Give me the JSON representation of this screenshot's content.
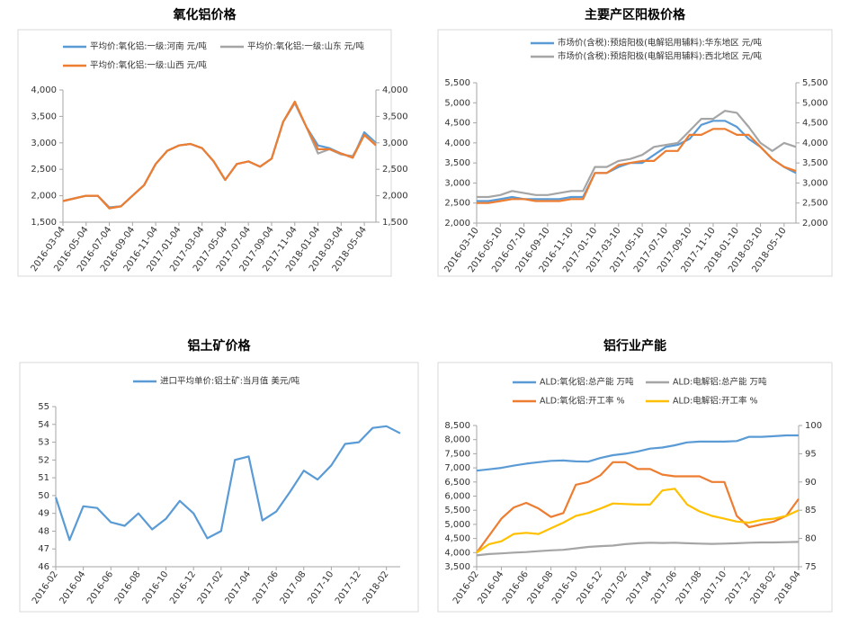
{
  "chart_data": [
    {
      "type": "line",
      "title": "氧化铝价格",
      "categories": [
        "2016-03-04",
        null,
        "2016-05-04",
        null,
        "2016-07-04",
        null,
        "2016-09-04",
        null,
        "2016-11-04",
        null,
        "2017-01-04",
        null,
        "2017-03-04",
        null,
        "2017-05-04",
        null,
        "2017-07-04",
        null,
        "2017-09-04",
        null,
        "2017-11-04",
        null,
        "2018-01-04",
        null,
        "2018-03-04",
        null,
        "2018-05-04",
        null
      ],
      "series": [
        {
          "name": "平均价:氧化铝:一级:河南 元/吨",
          "color": "#5b9bd5",
          "values": [
            1900,
            1950,
            2000,
            2000,
            1780,
            1800,
            2000,
            2200,
            2600,
            2850,
            2950,
            2980,
            2900,
            2650,
            2300,
            2600,
            2650,
            2550,
            2700,
            3400,
            3750,
            3300,
            2950,
            2900,
            2800,
            2720,
            3200,
            3000
          ]
        },
        {
          "name": "平均价:氧化铝:一级:山东 元/吨",
          "color": "#a5a5a5",
          "values": [
            1900,
            1950,
            2000,
            2000,
            1780,
            1800,
            2000,
            2200,
            2600,
            2850,
            2950,
            2980,
            2900,
            2650,
            2300,
            2600,
            2650,
            2550,
            2700,
            3400,
            3750,
            3300,
            2800,
            2880,
            2780,
            2750,
            3150,
            2980
          ]
        },
        {
          "name": "平均价:氧化铝:一级:山西 元/吨",
          "color": "#ed7d31",
          "values": [
            1900,
            1950,
            2000,
            2000,
            1760,
            1800,
            2000,
            2200,
            2600,
            2850,
            2950,
            2980,
            2900,
            2650,
            2300,
            2600,
            2650,
            2550,
            2700,
            3400,
            3780,
            3300,
            2880,
            2880,
            2800,
            2720,
            3150,
            2950
          ]
        }
      ],
      "ylim": [
        1500,
        4000
      ],
      "yticks": [
        {
          "value": 1500,
          "label": "1,500"
        },
        {
          "value": 2000,
          "label": "2,000"
        },
        {
          "value": 2500,
          "label": "2,500"
        },
        {
          "value": 3000,
          "label": "3,000"
        },
        {
          "value": 3500,
          "label": "3,500"
        },
        {
          "value": 4000,
          "label": "4,000"
        }
      ],
      "y2lim": [
        1500,
        4000
      ],
      "y2ticks": [
        {
          "value": 1500,
          "label": "1,500"
        },
        {
          "value": 2000,
          "label": "2,000"
        },
        {
          "value": 2500,
          "label": "2,500"
        },
        {
          "value": 3000,
          "label": "3,000"
        },
        {
          "value": 3500,
          "label": "3,500"
        },
        {
          "value": 4000,
          "label": "4,000"
        }
      ]
    },
    {
      "type": "line",
      "title": "主要产区阳极价格",
      "categories": [
        "2016-03-10",
        null,
        "2016-05-10",
        null,
        "2016-07-10",
        null,
        "2016-09-10",
        null,
        "2016-11-10",
        null,
        "2017-01-10",
        null,
        "2017-03-10",
        null,
        "2017-05-10",
        null,
        "2017-07-10",
        null,
        "2017-09-10",
        null,
        "2017-11-10",
        null,
        "2018-01-10",
        null,
        "2018-03-10",
        null,
        "2018-05-10",
        null
      ],
      "series": [
        {
          "name": "市场价(含税):预焙阳极(电解铝用辅料):华东地区 元/吨",
          "color": "#5b9bd5",
          "values": [
            2550,
            2550,
            2600,
            2650,
            2600,
            2600,
            2600,
            2600,
            2650,
            2650,
            3250,
            3250,
            3400,
            3500,
            3500,
            3700,
            3900,
            3950,
            4100,
            4450,
            4550,
            4550,
            4400,
            4100,
            3900,
            3600,
            3400,
            3250
          ]
        },
        {
          "name": "市场价(含税):预焙阳极(电解铝用辅料):西北地区 元/吨",
          "color": "#a5a5a5",
          "values": [
            2650,
            2650,
            2700,
            2800,
            2750,
            2700,
            2700,
            2750,
            2800,
            2800,
            3400,
            3400,
            3550,
            3600,
            3700,
            3900,
            3950,
            4000,
            4300,
            4600,
            4600,
            4800,
            4750,
            4400,
            4000,
            3800,
            4000,
            3900
          ]
        },
        {
          "color": "#ed7d31",
          "values": [
            2500,
            2500,
            2550,
            2600,
            2600,
            2550,
            2550,
            2550,
            2600,
            2600,
            3250,
            3250,
            3450,
            3500,
            3550,
            3550,
            3800,
            3800,
            4200,
            4200,
            4350,
            4350,
            4200,
            4200,
            3900,
            3600,
            3400,
            3300
          ]
        }
      ],
      "ylim": [
        2000,
        5500
      ],
      "yticks": [
        {
          "value": 2000,
          "label": "2,000"
        },
        {
          "value": 2500,
          "label": "2,500"
        },
        {
          "value": 3000,
          "label": "3,000"
        },
        {
          "value": 3500,
          "label": "3,500"
        },
        {
          "value": 4000,
          "label": "4,000"
        },
        {
          "value": 4500,
          "label": "4,500"
        },
        {
          "value": 5000,
          "label": "5,000"
        },
        {
          "value": 5500,
          "label": "5,500"
        }
      ],
      "y2lim": [
        2000,
        5500
      ],
      "y2ticks": [
        {
          "value": 2000,
          "label": "2,000"
        },
        {
          "value": 2500,
          "label": "2,500"
        },
        {
          "value": 3000,
          "label": "3,000"
        },
        {
          "value": 3500,
          "label": "3,500"
        },
        {
          "value": 4000,
          "label": "4,000"
        },
        {
          "value": 4500,
          "label": "4,500"
        },
        {
          "value": 5000,
          "label": "5,000"
        },
        {
          "value": 5500,
          "label": "5,500"
        }
      ]
    },
    {
      "type": "line",
      "title": "铝土矿价格",
      "categories": [
        "2016-02",
        null,
        "2016-04",
        null,
        "2016-06",
        null,
        "2016-08",
        null,
        "2016-10",
        null,
        "2016-12",
        null,
        "2017-02",
        null,
        "2017-04",
        null,
        "2017-06",
        null,
        "2017-08",
        null,
        "2017-10",
        null,
        "2017-12",
        null,
        "2018-02",
        null
      ],
      "series": [
        {
          "name": "进口平均单价:铝土矿:当月值 美元/吨",
          "color": "#5b9bd5",
          "values": [
            49.9,
            47.5,
            49.4,
            49.3,
            48.5,
            48.3,
            49.0,
            48.1,
            48.7,
            49.7,
            49.0,
            47.6,
            48.0,
            52.0,
            52.2,
            48.6,
            49.1,
            50.2,
            51.4,
            50.9,
            51.7,
            52.9,
            53.0,
            53.8,
            53.9,
            53.5
          ]
        }
      ],
      "ylim": [
        46,
        55
      ],
      "yticks": [
        46,
        47,
        48,
        49,
        50,
        51,
        52,
        53,
        54,
        55
      ]
    },
    {
      "type": "line",
      "title": "铝行业产能",
      "categories": [
        "2016-02",
        null,
        "2016-04",
        null,
        "2016-06",
        null,
        "2016-08",
        null,
        "2016-10",
        null,
        "2016-12",
        null,
        "2017-02",
        null,
        "2017-04",
        null,
        "2017-06",
        null,
        "2017-08",
        null,
        "2017-10",
        null,
        "2017-12",
        null,
        "2018-02",
        null,
        "2018-04"
      ],
      "series": [
        {
          "name": "ALD:氧化铝:总产能 万吨",
          "color": "#5b9bd5",
          "values": [
            6900,
            6950,
            7000,
            7080,
            7150,
            7200,
            7250,
            7260,
            7230,
            7220,
            7350,
            7450,
            7500,
            7580,
            7680,
            7720,
            7800,
            7900,
            7930,
            7930,
            7930,
            7950,
            8100,
            8100,
            8120,
            8150,
            8150
          ]
        },
        {
          "name": "ALD:电解铝:总产能 万吨",
          "color": "#a5a5a5",
          "values": [
            3900,
            3950,
            3970,
            4000,
            4020,
            4050,
            4080,
            4100,
            4150,
            4200,
            4230,
            4250,
            4300,
            4330,
            4350,
            4340,
            4350,
            4330,
            4320,
            4310,
            4320,
            4330,
            4350,
            4360,
            4360,
            4370,
            4380
          ]
        },
        {
          "name": "ALD:氧化铝:开工率 %",
          "color": "#ed7d31",
          "axis": "y2",
          "values": [
            77.5,
            80.5,
            83.5,
            85.5,
            86.3,
            85.3,
            83.8,
            84.5,
            89.5,
            90.0,
            91.2,
            93.5,
            93.5,
            92.3,
            92.3,
            91.3,
            91.0,
            91.0,
            91.0,
            90.0,
            90.0,
            84.0,
            82.0,
            82.5,
            83.0,
            84.0,
            87.0
          ]
        },
        {
          "name": "ALD:电解铝:开工率 %",
          "color": "#ffc000",
          "axis": "y2",
          "values": [
            77.5,
            79.0,
            79.5,
            80.8,
            81.0,
            80.8,
            81.8,
            82.8,
            84.0,
            84.5,
            85.3,
            86.2,
            86.1,
            86.0,
            86.0,
            88.5,
            88.8,
            86.0,
            84.8,
            84.0,
            83.5,
            83.0,
            82.8,
            83.3,
            83.5,
            84.0,
            85.0
          ]
        }
      ],
      "ylim": [
        3500,
        8500
      ],
      "yticks": [
        {
          "value": 3500,
          "label": "3,500"
        },
        {
          "value": 4000,
          "label": "4,000"
        },
        {
          "value": 4500,
          "label": "4,500"
        },
        {
          "value": 5000,
          "label": "5,000"
        },
        {
          "value": 5500,
          "label": "5,500"
        },
        {
          "value": 6000,
          "label": "6,000"
        },
        {
          "value": 6500,
          "label": "6,500"
        },
        {
          "value": 7000,
          "label": "7,000"
        },
        {
          "value": 7500,
          "label": "7,500"
        },
        {
          "value": 8000,
          "label": "8,000"
        },
        {
          "value": 8500,
          "label": "8,500"
        }
      ],
      "y2lim": [
        75,
        100
      ],
      "y2ticks": [
        75,
        80,
        85,
        90,
        95,
        100
      ]
    }
  ]
}
